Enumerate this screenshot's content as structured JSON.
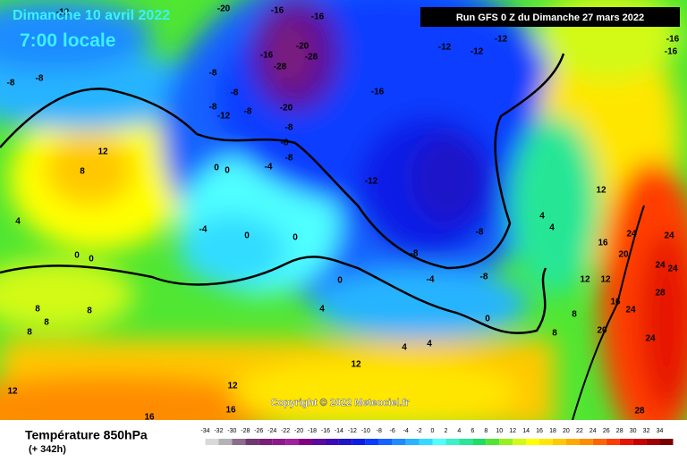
{
  "header": {
    "date": "Dimanche 10 avril 2022",
    "time": "7:00 locale",
    "run": "Run GFS 0 Z du Dimanche 27 mars 2022",
    "copyright": "Copyright © 2022 Meteociel.fr"
  },
  "footer": {
    "parameter": "Température 850hPa",
    "lead": "(+ 342h)"
  },
  "legend": {
    "values": [
      -34,
      -32,
      -30,
      -28,
      -26,
      -24,
      -22,
      -20,
      -18,
      -16,
      -14,
      -12,
      -10,
      -8,
      -6,
      -4,
      -2,
      0,
      2,
      4,
      6,
      8,
      10,
      12,
      14,
      16,
      18,
      20,
      22,
      24,
      26,
      28,
      30,
      32,
      34
    ],
    "colors": [
      "#d9d9d9",
      "#b3b3b3",
      "#8c6d8c",
      "#6e3a6e",
      "#7b1e7b",
      "#8c1a8c",
      "#a020a0",
      "#800080",
      "#5a0a9c",
      "#3c0ab4",
      "#1e14c8",
      "#0a1ee6",
      "#0a3cff",
      "#1464ff",
      "#1e8cff",
      "#28b4ff",
      "#32dcff",
      "#50ffff",
      "#3cf0c8",
      "#28e696",
      "#1edc64",
      "#50e632",
      "#96f01e",
      "#d2fa14",
      "#ffff00",
      "#ffe600",
      "#ffc800",
      "#ffaa00",
      "#ff8c00",
      "#ff6400",
      "#ff3c00",
      "#e61400",
      "#c80000",
      "#a00000",
      "#780000"
    ]
  },
  "map_labels": [
    "-12",
    "-20",
    "-16",
    "-16",
    "-12",
    "-12",
    "-12",
    "-16",
    "-16",
    "-20",
    "-28",
    "-16",
    "-28",
    "-8",
    "-8",
    "-16",
    "-8",
    "-12",
    "-8",
    "-20",
    "-8",
    "-8",
    "-4",
    "-8",
    "-12",
    "0",
    "0",
    "12",
    "8",
    "4",
    "-4",
    "0",
    "0",
    "0",
    "0",
    "-8",
    "-8",
    "-4",
    "-8",
    "0",
    "0",
    "4",
    "4",
    "12",
    "16",
    "20",
    "24",
    "24",
    "24",
    "24",
    "28",
    "12",
    "12",
    "16",
    "24",
    "8",
    "8",
    "20",
    "24",
    "4",
    "8",
    "8",
    "8",
    "8",
    "4",
    "4",
    "12",
    "12",
    "12",
    "16",
    "16",
    "28",
    "-8",
    "-8"
  ]
}
